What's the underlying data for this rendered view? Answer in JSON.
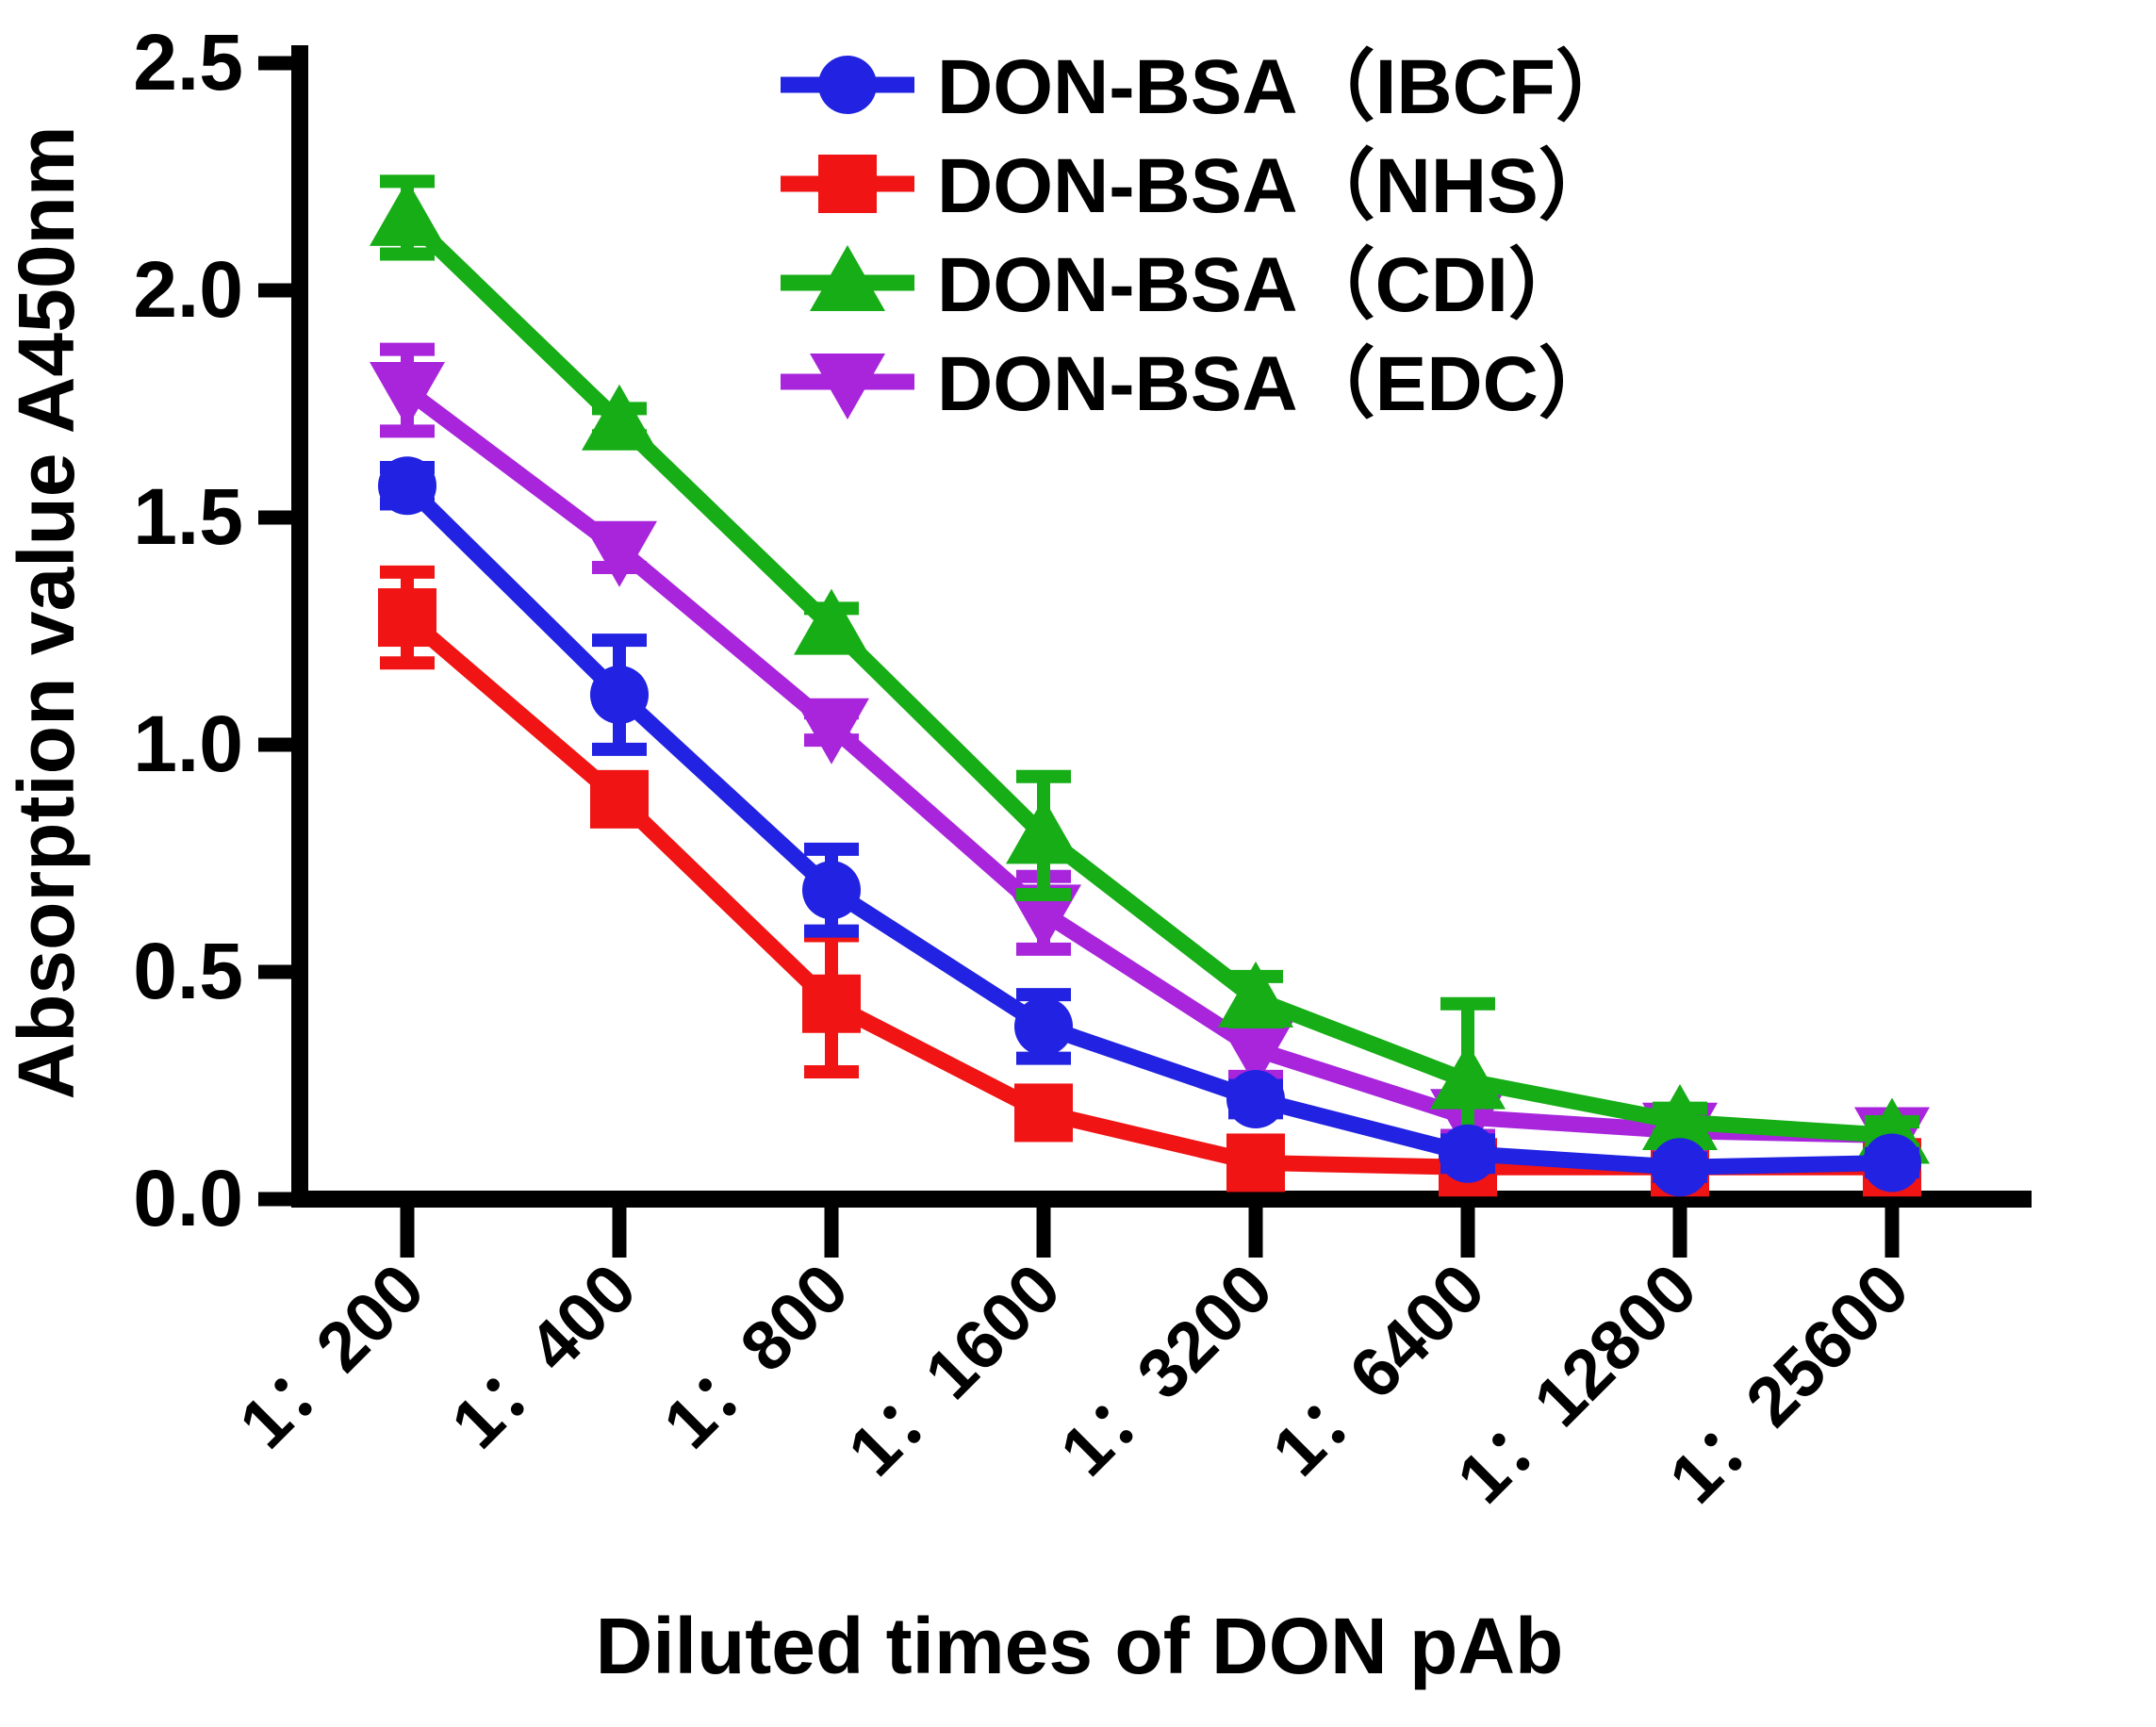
{
  "chart_data": {
    "type": "line",
    "title": "",
    "xlabel": "Diluted times of DON pAb",
    "ylabel": "Absorption value A450nm",
    "ylim": [
      0,
      2.5
    ],
    "ytick_labels": [
      "0.0",
      "0.5",
      "1.0",
      "1.5",
      "2.0",
      "2.5"
    ],
    "grid": false,
    "legend_position": "top-right",
    "error_bars": "sd, capped, symmetric",
    "categories": [
      "1：200",
      "1：400",
      "1：800",
      "1：1600",
      "1：3200",
      "1：6400",
      "1：12800",
      "1：25600"
    ],
    "series": [
      {
        "name": "DON-BSA（IBCF）",
        "color": "#2222e2",
        "marker": "circle",
        "values": [
          1.57,
          1.11,
          0.68,
          0.38,
          0.22,
          0.1,
          0.07,
          0.08
        ],
        "errors": [
          0.04,
          0.12,
          0.09,
          0.07,
          0.03,
          0.03,
          0.02,
          0.02
        ]
      },
      {
        "name": "DON-BSA（NHS）",
        "color": "#f01414",
        "marker": "square",
        "values": [
          1.28,
          0.88,
          0.43,
          0.19,
          0.08,
          0.07,
          0.07,
          0.07
        ],
        "errors": [
          0.1,
          0.03,
          0.15,
          0.03,
          0.02,
          0.02,
          0.02,
          0.02
        ]
      },
      {
        "name": "DON-BSA（CDI）",
        "color": "#16ad16",
        "marker": "triangle-up",
        "values": [
          2.16,
          1.71,
          1.26,
          0.8,
          0.44,
          0.26,
          0.17,
          0.14
        ],
        "errors": [
          0.08,
          0.03,
          0.04,
          0.13,
          0.05,
          0.17,
          0.03,
          0.03
        ]
      },
      {
        "name": "DON-BSA（EDC）",
        "color": "#a825dc",
        "marker": "triangle-down",
        "values": [
          1.78,
          1.43,
          1.04,
          0.63,
          0.33,
          0.18,
          0.15,
          0.14
        ],
        "errors": [
          0.09,
          0.04,
          0.03,
          0.08,
          0.06,
          0.04,
          0.03,
          0.03
        ]
      }
    ]
  }
}
